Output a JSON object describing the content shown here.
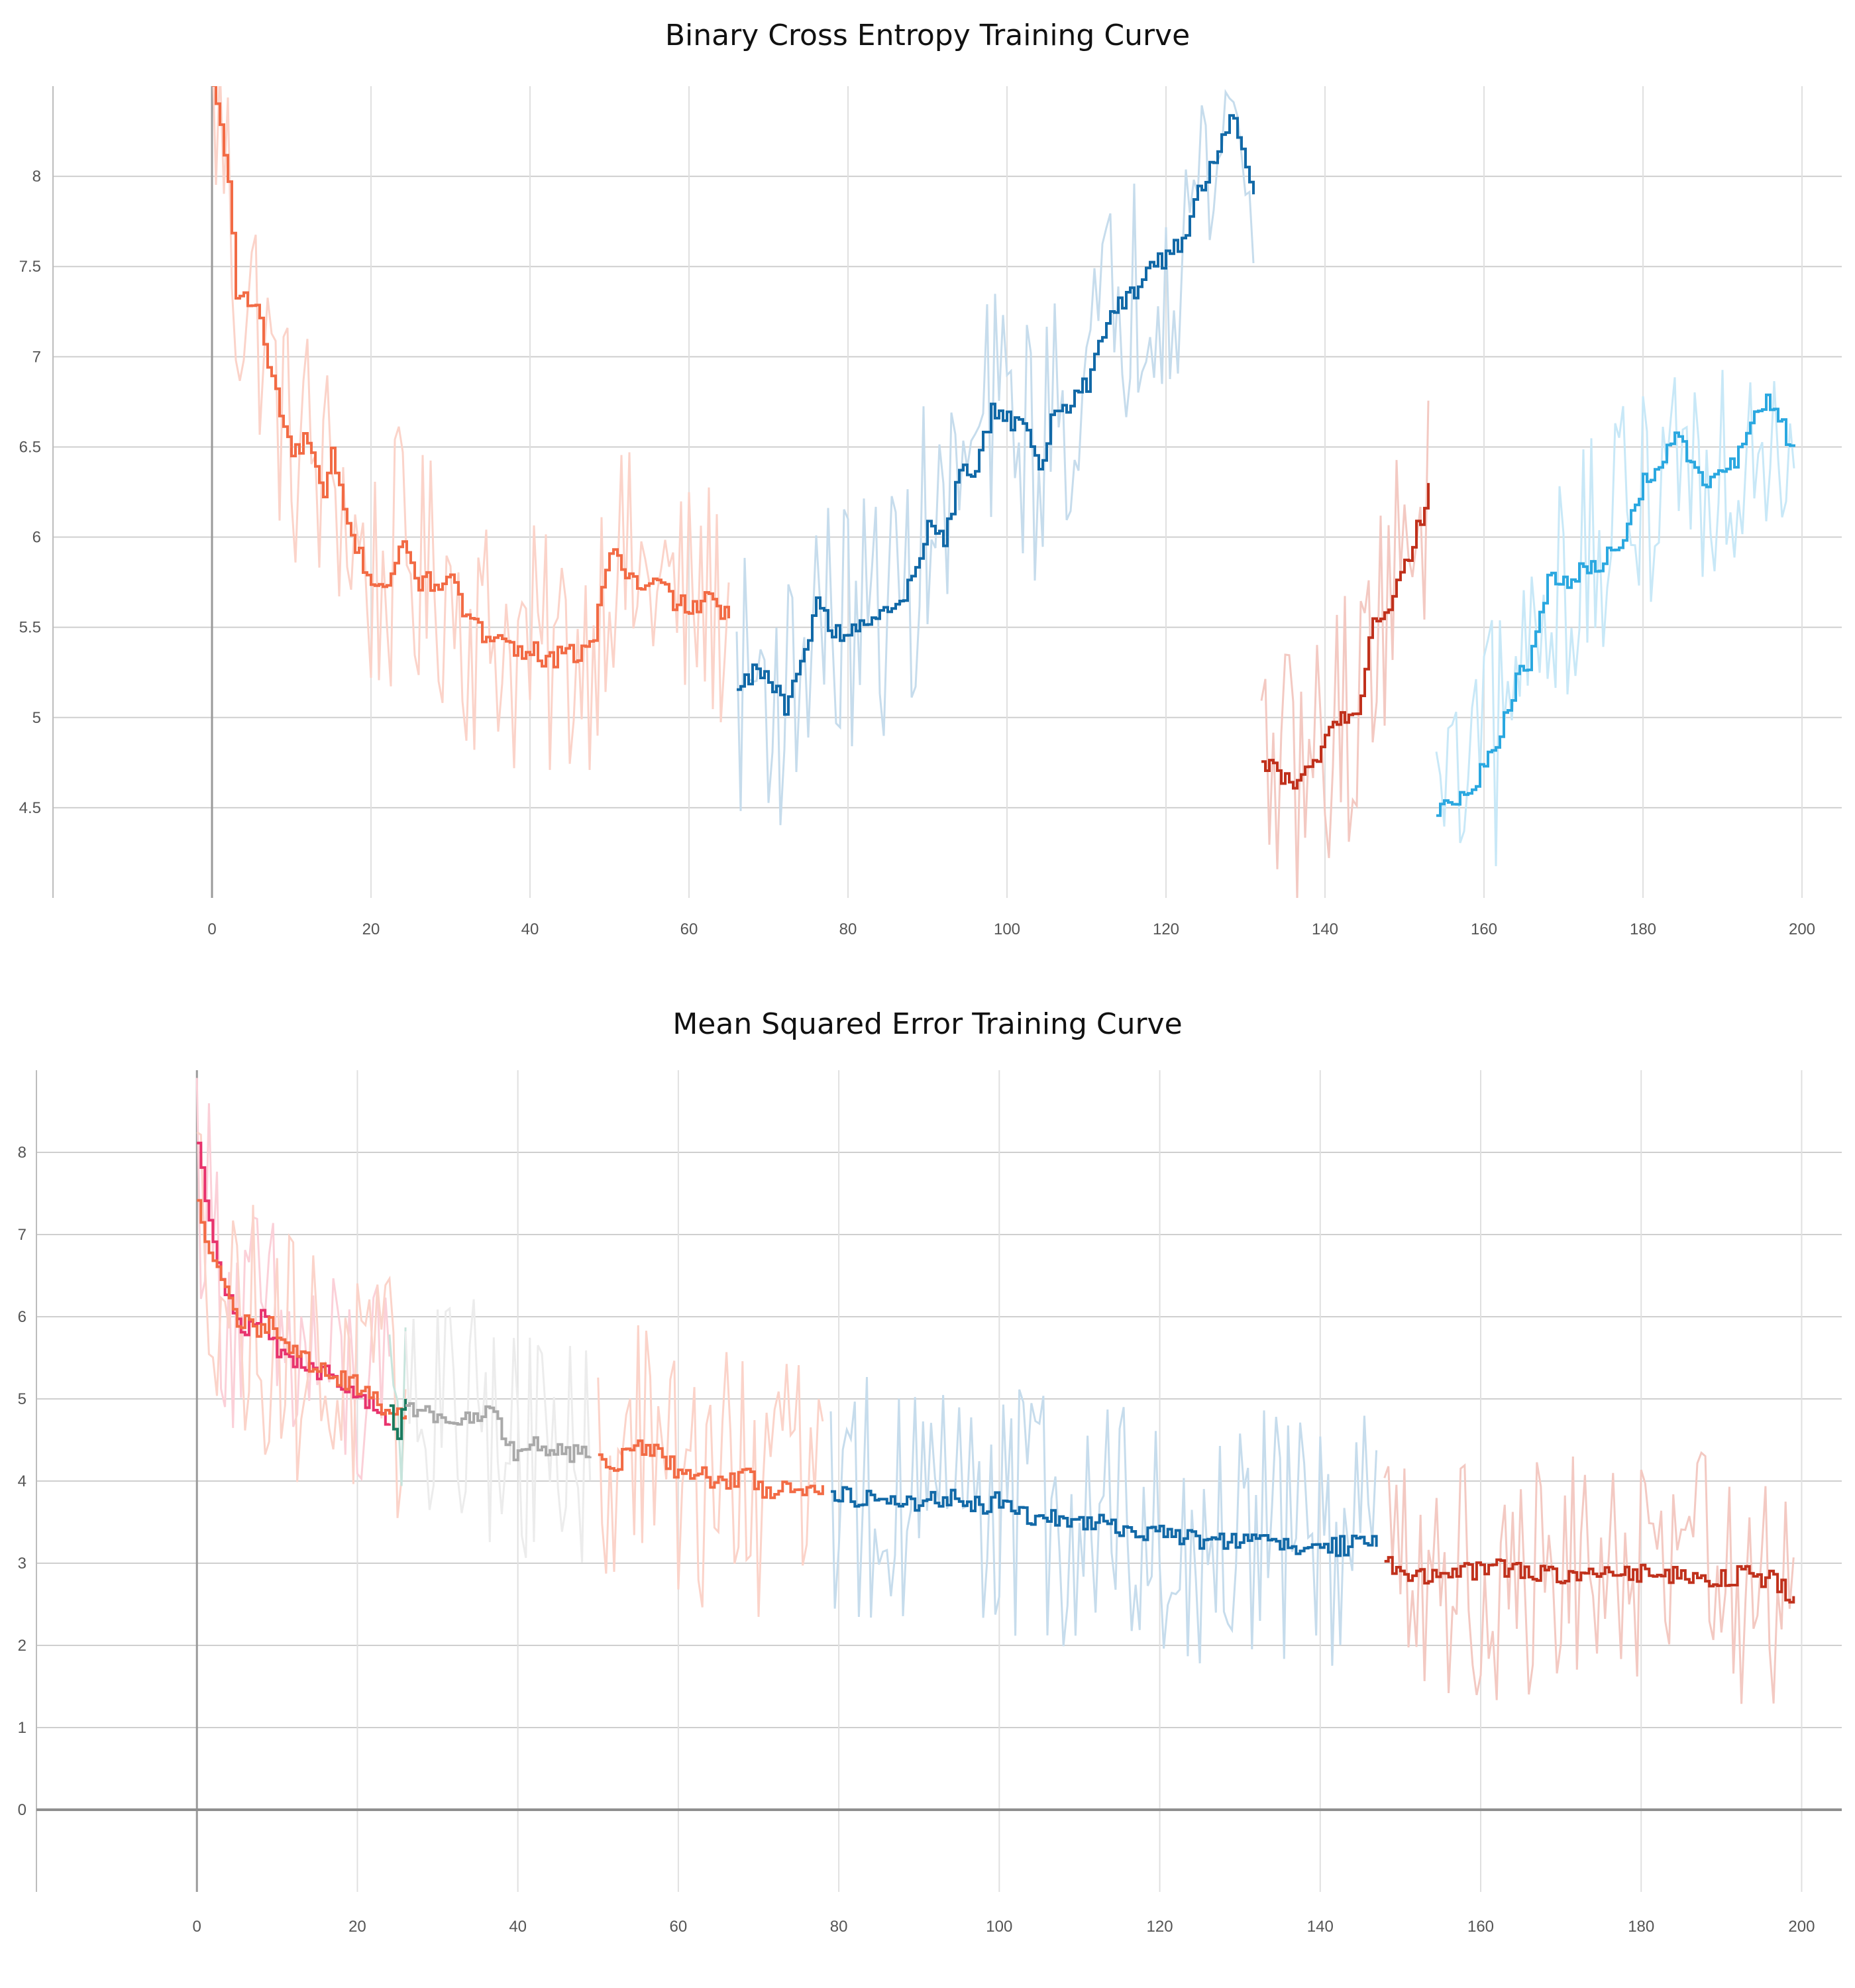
{
  "chart_data": [
    {
      "type": "line",
      "title": "Binary Cross Entropy Training Curve",
      "xlabel": "",
      "ylabel": "",
      "xlim": [
        -20,
        205
      ],
      "ylim": [
        4.0,
        8.5
      ],
      "xticks": [
        0,
        20,
        40,
        60,
        80,
        100,
        120,
        140,
        160,
        180,
        200
      ],
      "xtick_labels": [
        "0",
        "20",
        "40",
        "60",
        "80",
        "100",
        "120",
        "140",
        "160",
        "180",
        "200"
      ],
      "yticks": [
        4.5,
        5,
        5.5,
        6,
        6.5,
        7,
        7.5,
        8
      ],
      "ytick_labels": [
        "4.5",
        "5",
        "5.5",
        "6",
        "6.5",
        "7",
        "7.5",
        "8"
      ],
      "grid": true,
      "series": [
        {
          "color": "#f26b45",
          "raw_color": "#fbd3c9",
          "x": [
            0,
            2,
            3,
            5,
            6,
            7,
            8,
            10,
            12,
            14,
            15,
            17,
            20,
            22,
            24,
            26,
            28,
            30,
            32,
            34,
            36,
            38,
            40,
            42,
            44,
            46,
            48,
            50,
            52,
            54,
            56,
            58,
            60,
            62,
            64,
            65
          ],
          "y": [
            8.5,
            8.0,
            7.35,
            7.3,
            7.2,
            6.95,
            6.8,
            6.45,
            6.55,
            6.2,
            6.45,
            6.05,
            5.75,
            5.75,
            5.95,
            5.75,
            5.75,
            5.75,
            5.55,
            5.45,
            5.5,
            5.35,
            5.4,
            5.3,
            5.35,
            5.35,
            5.45,
            5.95,
            5.8,
            5.7,
            5.75,
            5.65,
            5.6,
            5.65,
            5.6,
            5.55
          ]
        },
        {
          "color": "#1269a7",
          "raw_color": "#c6dcec",
          "x": [
            66,
            68,
            70,
            72,
            74,
            76,
            78,
            80,
            82,
            84,
            86,
            88,
            90,
            92,
            94,
            96,
            98,
            100,
            102,
            104,
            106,
            108,
            110,
            112,
            114,
            116,
            118,
            120,
            122,
            124,
            126,
            128,
            130,
            131
          ],
          "y": [
            5.15,
            5.25,
            5.2,
            5.05,
            5.3,
            5.65,
            5.45,
            5.5,
            5.55,
            5.6,
            5.65,
            5.75,
            6.1,
            6.0,
            6.35,
            6.4,
            6.7,
            6.65,
            6.6,
            6.4,
            6.7,
            6.75,
            6.85,
            7.1,
            7.3,
            7.35,
            7.5,
            7.55,
            7.65,
            7.9,
            8.1,
            8.35,
            8.05,
            7.9
          ]
        },
        {
          "color": "#c0311c",
          "raw_color": "#f3c9c2",
          "x": [
            132,
            134,
            136,
            138,
            140,
            142,
            144,
            146,
            148,
            150,
            152,
            153
          ],
          "y": [
            4.75,
            4.7,
            4.65,
            4.7,
            4.9,
            5.0,
            5.0,
            5.55,
            5.6,
            5.85,
            6.1,
            6.3
          ]
        },
        {
          "color": "#2ba8e0",
          "raw_color": "#c8e8f7",
          "x": [
            154,
            156,
            158,
            160,
            162,
            164,
            166,
            168,
            170,
            172,
            174,
            176,
            178,
            180,
            182,
            184,
            186,
            188,
            190,
            192,
            194,
            196,
            198,
            199
          ],
          "y": [
            4.45,
            4.55,
            4.55,
            4.75,
            4.9,
            5.2,
            5.35,
            5.75,
            5.75,
            5.8,
            5.85,
            5.9,
            6.05,
            6.3,
            6.4,
            6.55,
            6.45,
            6.3,
            6.4,
            6.45,
            6.7,
            6.75,
            6.55,
            6.5
          ]
        }
      ]
    },
    {
      "type": "line",
      "title": "Mean Squared Error Training Curve",
      "xlabel": "",
      "ylabel": "",
      "xlim": [
        -20,
        205
      ],
      "ylim": [
        -1.0,
        9.0
      ],
      "xticks": [
        0,
        20,
        40,
        60,
        80,
        100,
        120,
        140,
        160,
        180,
        200
      ],
      "xtick_labels": [
        "0",
        "20",
        "40",
        "60",
        "80",
        "100",
        "120",
        "140",
        "160",
        "180",
        "200"
      ],
      "yticks": [
        0,
        1,
        2,
        3,
        4,
        5,
        6,
        7,
        8
      ],
      "ytick_labels": [
        "0",
        "1",
        "2",
        "3",
        "4",
        "5",
        "6",
        "7",
        "8"
      ],
      "grid": true,
      "series": [
        {
          "color": "#e8336d",
          "raw_color": "#fbd0d8",
          "x": [
            0,
            2,
            4,
            6,
            8,
            10,
            12,
            14,
            16,
            18,
            20,
            22,
            24
          ],
          "y": [
            8.1,
            6.9,
            6.2,
            5.8,
            6.0,
            5.6,
            5.4,
            5.4,
            5.3,
            5.1,
            5.1,
            4.9,
            4.7
          ]
        },
        {
          "color": "#f26b45",
          "raw_color": "#fbd3c9",
          "x": [
            0,
            1,
            3,
            5,
            7,
            9,
            11,
            13,
            15,
            17,
            19,
            21,
            23,
            25,
            26
          ],
          "y": [
            7.4,
            7.0,
            6.5,
            6.0,
            5.8,
            5.9,
            5.7,
            5.5,
            5.4,
            5.3,
            5.2,
            5.1,
            4.9,
            4.9,
            4.8
          ]
        },
        {
          "color": "#1a7a5e",
          "raw_color": "#c7e4dc",
          "x": [
            24,
            25,
            26
          ],
          "y": [
            4.9,
            4.6,
            5.0
          ]
        },
        {
          "color": "#a9a9a9",
          "raw_color": "#ececec",
          "x": [
            26,
            28,
            30,
            32,
            34,
            36,
            38,
            40,
            42,
            44,
            46,
            48,
            49
          ],
          "y": [
            4.9,
            4.85,
            4.75,
            4.8,
            4.7,
            4.9,
            4.6,
            4.3,
            4.45,
            4.4,
            4.3,
            4.35,
            4.3
          ]
        },
        {
          "color": "#f26b45",
          "raw_color": "#fbd3c9",
          "x": [
            50,
            52,
            54,
            56,
            58,
            60,
            62,
            64,
            66,
            68,
            70,
            72,
            74,
            76,
            78
          ],
          "y": [
            4.3,
            4.2,
            4.4,
            4.4,
            4.3,
            4.1,
            4.1,
            4.0,
            4.0,
            4.1,
            3.9,
            3.9,
            3.95,
            3.9,
            3.95
          ]
        },
        {
          "color": "#1269a7",
          "raw_color": "#c6dcec",
          "x": [
            79,
            82,
            85,
            88,
            91,
            94,
            97,
            100,
            103,
            106,
            109,
            112,
            115,
            118,
            121,
            124,
            127,
            130,
            133,
            136,
            139,
            142,
            145,
            147
          ],
          "y": [
            3.85,
            3.8,
            3.85,
            3.7,
            3.75,
            3.8,
            3.7,
            3.75,
            3.6,
            3.55,
            3.5,
            3.5,
            3.4,
            3.35,
            3.4,
            3.3,
            3.3,
            3.25,
            3.3,
            3.2,
            3.25,
            3.2,
            3.25,
            3.2
          ]
        },
        {
          "color": "#c0311c",
          "raw_color": "#f3c9c2",
          "x": [
            148,
            151,
            154,
            157,
            160,
            163,
            166,
            169,
            172,
            175,
            178,
            181,
            184,
            187,
            190,
            193,
            196,
            199
          ],
          "y": [
            3.0,
            2.85,
            2.85,
            2.9,
            2.9,
            2.95,
            2.9,
            2.85,
            2.8,
            2.9,
            2.85,
            2.9,
            2.85,
            2.85,
            2.8,
            2.9,
            2.8,
            2.6
          ]
        }
      ]
    }
  ]
}
